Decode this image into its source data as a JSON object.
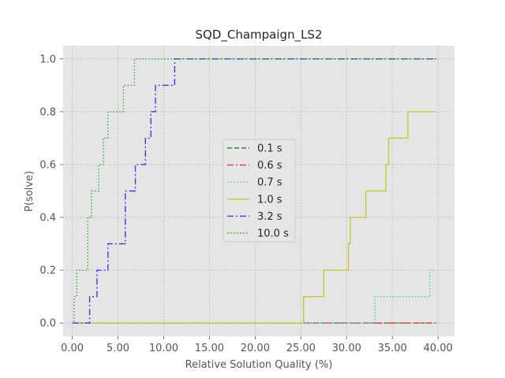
{
  "chart_data": {
    "type": "line",
    "title": "SQD_Champaign_LS2",
    "xlabel": "Relative Solution Quality (%)",
    "ylabel": "P(solve)",
    "xlim": [
      -1.0,
      41.8
    ],
    "ylim": [
      -0.05,
      1.05
    ],
    "xticks": [
      0,
      5,
      10,
      15,
      20,
      25,
      30,
      35,
      40
    ],
    "xtick_labels": [
      "0.00",
      "5.00",
      "10.00",
      "15.00",
      "20.00",
      "25.00",
      "30.00",
      "35.00",
      "40.00"
    ],
    "yticks": [
      0,
      0.2,
      0.4,
      0.6,
      0.8,
      1.0
    ],
    "ytick_labels": [
      "0.0",
      "0.2",
      "0.4",
      "0.6",
      "0.8",
      "1.0"
    ],
    "grid": true,
    "legend_position": "center",
    "series": [
      {
        "name": "0.1 s",
        "color": "#2e8b2e",
        "dash": "6,3",
        "x": [
          0.0,
          39.8
        ],
        "y": [
          0.0,
          0.0
        ]
      },
      {
        "name": "0.6 s",
        "color": "#e33b3b",
        "dash": "8,3,2,3",
        "x": [
          0.0,
          39.8
        ],
        "y": [
          0.0,
          0.0
        ]
      },
      {
        "name": "0.7 s",
        "color": "#33cccc",
        "dash": "1.5,2.5",
        "x": [
          0.0,
          33.1,
          33.1,
          39.1,
          39.1,
          39.6
        ],
        "y": [
          0.0,
          0.0,
          0.1,
          0.1,
          0.2,
          0.2
        ]
      },
      {
        "name": "1.0 s",
        "color": "#c8c832",
        "dash": "",
        "x": [
          0.0,
          25.3,
          25.3,
          27.5,
          27.5,
          30.2,
          30.2,
          30.4,
          30.4,
          31.5,
          31.5,
          32.1,
          32.1,
          32.5,
          32.5,
          34.3,
          34.3,
          34.6,
          34.6,
          34.9,
          34.9,
          36.7,
          36.7,
          39.8
        ],
        "y": [
          0.0,
          0.0,
          0.1,
          0.1,
          0.2,
          0.2,
          0.3,
          0.3,
          0.4,
          0.4,
          0.4,
          0.4,
          0.5,
          0.5,
          0.5,
          0.5,
          0.6,
          0.6,
          0.7,
          0.7,
          0.7,
          0.7,
          0.8,
          0.8
        ]
      },
      {
        "name": "3.2 s",
        "color": "#3a3ae0",
        "dash": "8,3,2,3",
        "x": [
          0.0,
          1.9,
          1.9,
          2.7,
          2.7,
          3.3,
          3.3,
          3.9,
          3.9,
          5.8,
          5.8,
          6.9,
          6.9,
          8.0,
          8.0,
          8.6,
          8.6,
          9.1,
          9.1,
          11.2,
          11.2,
          39.8
        ],
        "y": [
          0.0,
          0.0,
          0.1,
          0.1,
          0.2,
          0.2,
          0.2,
          0.2,
          0.3,
          0.3,
          0.5,
          0.5,
          0.6,
          0.6,
          0.7,
          0.7,
          0.8,
          0.8,
          0.9,
          0.9,
          1.0,
          1.0
        ]
      },
      {
        "name": "10.0 s",
        "color": "#2ea82e",
        "dash": "1.5,2.5",
        "x": [
          0.0,
          0.2,
          0.2,
          0.5,
          0.5,
          1.7,
          1.7,
          2.1,
          2.1,
          2.4,
          2.4,
          2.9,
          2.9,
          3.4,
          3.4,
          3.9,
          3.9,
          4.2,
          4.2,
          5.6,
          5.6,
          5.8,
          5.8,
          6.8,
          6.8,
          39.8
        ],
        "y": [
          0.0,
          0.0,
          0.1,
          0.1,
          0.2,
          0.2,
          0.4,
          0.4,
          0.5,
          0.5,
          0.5,
          0.5,
          0.6,
          0.6,
          0.7,
          0.7,
          0.8,
          0.8,
          0.8,
          0.8,
          0.9,
          0.9,
          0.9,
          0.9,
          1.0,
          1.0
        ]
      }
    ]
  }
}
